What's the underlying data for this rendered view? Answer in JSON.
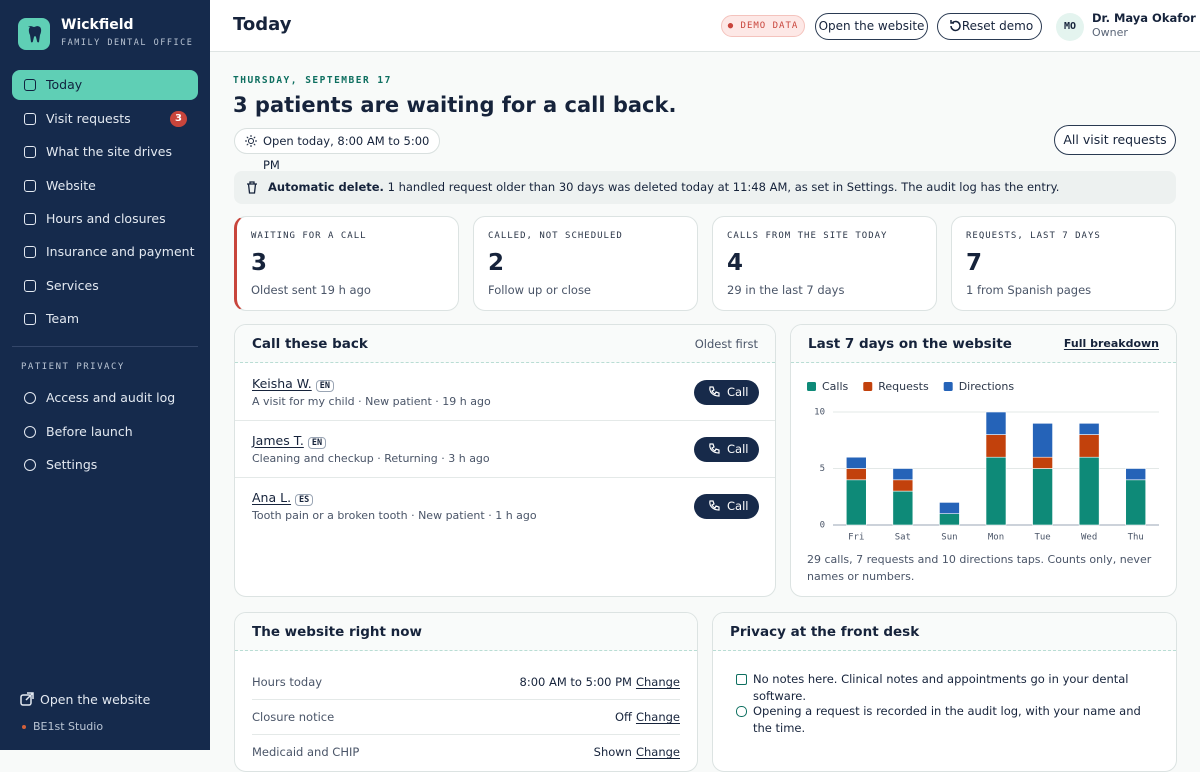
{
  "sidebar": {
    "brand": "Wickfield",
    "tagline": "FAMILY DENTAL OFFICE",
    "nav": [
      {
        "label": "Today"
      },
      {
        "label": "Visit requests",
        "badge": 3
      },
      {
        "label": "What the site drives"
      },
      {
        "label": "Website"
      },
      {
        "label": "Hours and closures"
      },
      {
        "label": "Insurance and payment"
      },
      {
        "label": "Services"
      },
      {
        "label": "Team"
      }
    ],
    "privacy_heading": "PATIENT PRIVACY",
    "privacy_nav": [
      {
        "label": "Access and audit log"
      },
      {
        "label": "Before launch"
      },
      {
        "label": "Settings"
      }
    ],
    "footer_link": "Open the website",
    "credit": "BE1st Studio"
  },
  "header": {
    "title": "Today",
    "demo_badge": "DEMO DATA",
    "open_site": "Open the website",
    "reset": "Reset demo",
    "user_initials": "MO",
    "user_name": "Dr. Maya Okafor",
    "user_role": "Owner"
  },
  "hero": {
    "date": "THURSDAY, SEPTEMBER 17",
    "headline": "3 patients are waiting for a call back.",
    "hours_chip": "Open today, 8:00 AM to 5:00 PM",
    "all_requests": "All visit requests"
  },
  "notice": {
    "bold": "Automatic delete.",
    "text": "1 handled request older than 30 days was deleted today at 11:48 AM, as set in Settings. The audit log has the entry."
  },
  "stats": [
    {
      "label": "WAITING FOR A CALL",
      "value": 3,
      "note": "Oldest sent 19 h ago"
    },
    {
      "label": "CALLED, NOT SCHEDULED",
      "value": 2,
      "note": "Follow up or close"
    },
    {
      "label": "CALLS FROM THE SITE TODAY",
      "value": 4,
      "note": "29 in the last 7 days"
    },
    {
      "label": "REQUESTS, LAST 7 DAYS",
      "value": 7,
      "note": "1 from Spanish pages"
    }
  ],
  "callbacks": {
    "title": "Call these back",
    "sort": "Oldest first",
    "button": "Call",
    "items": [
      {
        "name": "Keisha W.",
        "lang": "EN",
        "detail": "A visit for my child · New patient · 19 h ago"
      },
      {
        "name": "James T.",
        "lang": "EN",
        "detail": "Cleaning and checkup · Returning · 3 h ago"
      },
      {
        "name": "Ana L.",
        "lang": "ES",
        "detail": "Tooth pain or a broken tooth · New patient · 1 h ago"
      }
    ]
  },
  "weekly": {
    "title": "Last 7 days on the website",
    "link": "Full breakdown",
    "chart": {
      "type": "bar",
      "stacked": true,
      "legend": "top-left",
      "grid": true,
      "categories": [
        "Fri",
        "Sat",
        "Sun",
        "Mon",
        "Tue",
        "Wed",
        "Thu"
      ],
      "series": [
        {
          "name": "Calls",
          "color": "#0e8a78",
          "values": [
            4,
            3,
            1,
            6,
            5,
            6,
            4
          ]
        },
        {
          "name": "Requests",
          "color": "#c2410c",
          "values": [
            1,
            1,
            0,
            2,
            1,
            2,
            0
          ]
        },
        {
          "name": "Directions",
          "color": "#2563b8",
          "values": [
            1,
            1,
            1,
            2,
            3,
            1,
            1
          ]
        }
      ],
      "ylim": [
        0,
        10
      ],
      "yticks": [
        0,
        5,
        10
      ]
    },
    "summary": "29 calls, 7 requests and 10 directions taps. Counts only, never names or numbers."
  },
  "website_now": {
    "title": "The website right now",
    "rows": [
      {
        "label": "Hours today",
        "value": "8:00 AM to 5:00 PM",
        "action": "Change"
      },
      {
        "label": "Closure notice",
        "value": "Off",
        "action": "Change"
      },
      {
        "label": "Medicaid and CHIP",
        "value": "Shown",
        "action": "Change"
      }
    ]
  },
  "privacy": {
    "title": "Privacy at the front desk",
    "items": [
      "No notes here. Clinical notes and appointments go in your dental software.",
      "Opening a request is recorded in the audit log, with your name and the time."
    ]
  }
}
